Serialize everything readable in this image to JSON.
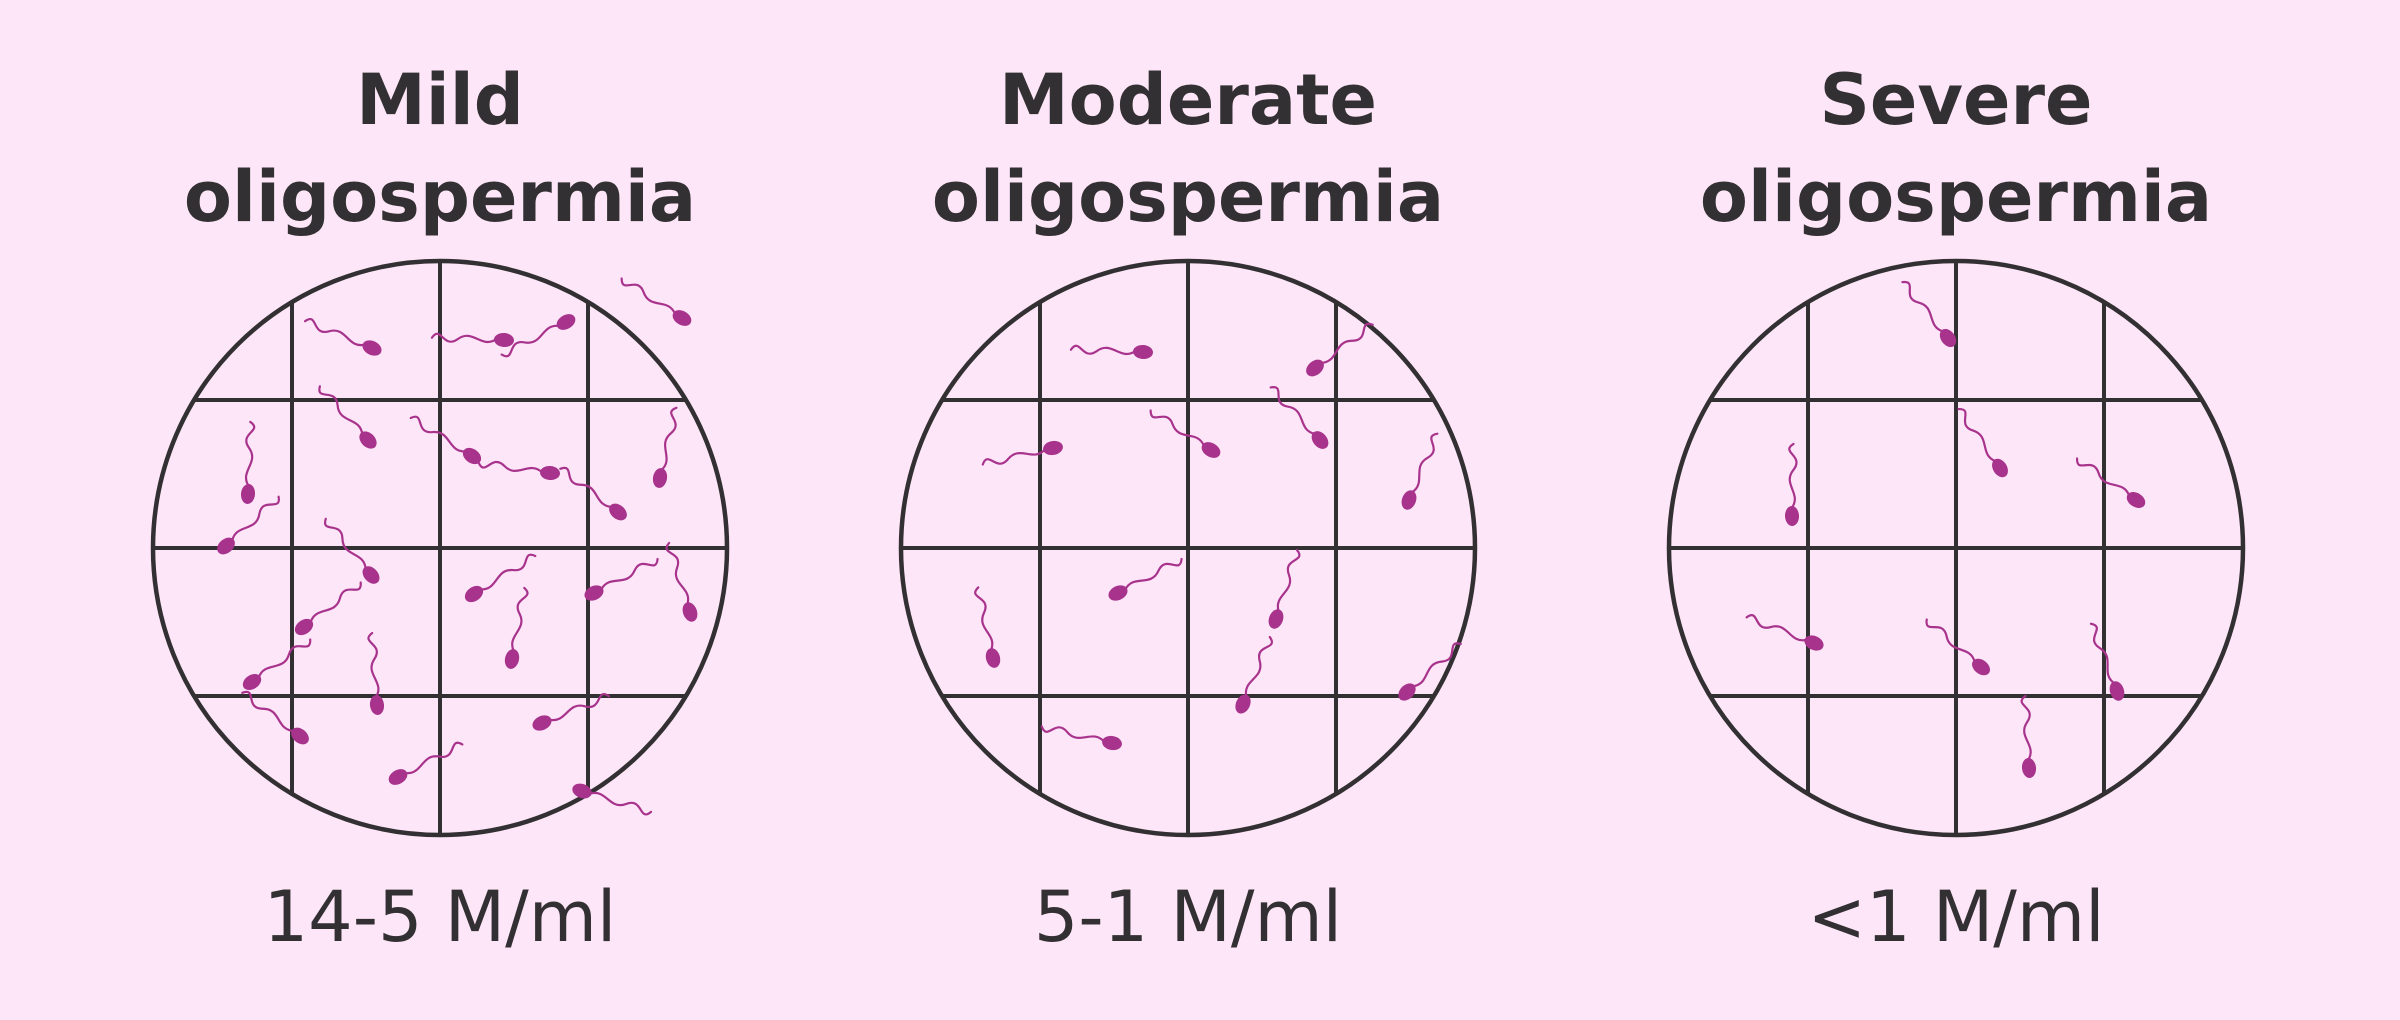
{
  "panels": [
    {
      "title_line1": "Mild",
      "title_line2": "oligospermia",
      "concentration": "14-5 M/ml"
    },
    {
      "title_line1": "Moderate",
      "title_line2": "oligospermia",
      "concentration": "5-1 M/ml"
    },
    {
      "title_line1": "Severe",
      "title_line2": "oligospermia",
      "concentration": "<1 M/ml"
    }
  ],
  "colors": {
    "background": "#fde6f7",
    "grid_line": "#333033",
    "sperm": "#a8338c"
  }
}
